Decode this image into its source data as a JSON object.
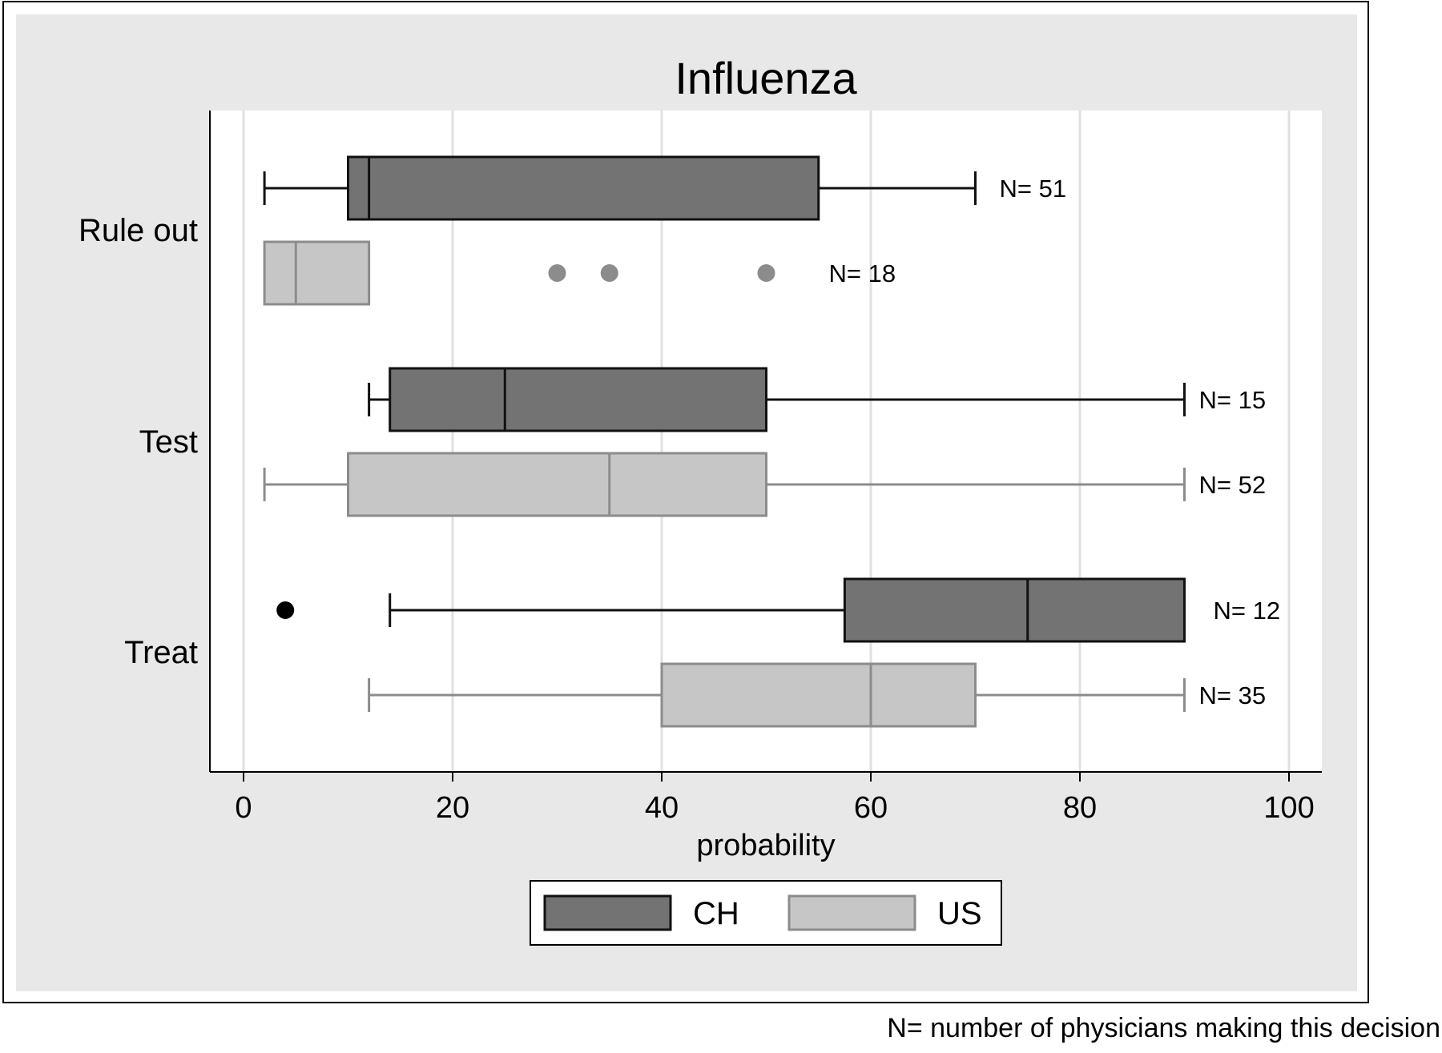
{
  "chart_data": {
    "type": "boxplot",
    "title": "Influenza",
    "xlabel": "probability",
    "ylabel": "",
    "xlim": [
      -3,
      103
    ],
    "xticks": [
      0,
      20,
      40,
      60,
      80,
      100
    ],
    "grid": true,
    "orientation": "horizontal",
    "legend_placement": "bottom",
    "categories": [
      "Rule out",
      "Test",
      "Treat"
    ],
    "series": [
      {
        "name": "CH",
        "fill": "#737373",
        "stroke": "#111111",
        "boxes": [
          {
            "category": "Rule out",
            "whisker_low": 2,
            "q1": 10,
            "median": 12,
            "q3": 55,
            "whisker_high": 70,
            "outliers": [],
            "n_label": "N= 51"
          },
          {
            "category": "Test",
            "whisker_low": 12,
            "q1": 14,
            "median": 25,
            "q3": 50,
            "whisker_high": 90,
            "outliers": [],
            "n_label": "N= 15"
          },
          {
            "category": "Treat",
            "whisker_low": 14,
            "q1": 57.5,
            "median": 75,
            "q3": 90,
            "whisker_high": 90,
            "outliers": [
              4
            ],
            "n_label": "N= 12"
          }
        ]
      },
      {
        "name": "US",
        "fill": "#c6c6c6",
        "stroke": "#8c8c8c",
        "boxes": [
          {
            "category": "Rule out",
            "whisker_low": 2,
            "q1": 2,
            "median": 5,
            "q3": 12,
            "whisker_high": 12,
            "outliers": [
              30,
              35,
              50
            ],
            "n_label": "N= 18"
          },
          {
            "category": "Test",
            "whisker_low": 2,
            "q1": 10,
            "median": 35,
            "q3": 50,
            "whisker_high": 90,
            "outliers": [],
            "n_label": "N= 52"
          },
          {
            "category": "Treat",
            "whisker_low": 12,
            "q1": 40,
            "median": 60,
            "q3": 70,
            "whisker_high": 90,
            "outliers": [],
            "n_label": "N= 35"
          }
        ]
      }
    ]
  },
  "footnote": "N= number of physicians making this decision",
  "colors": {
    "outer_background": "#e8e8e8",
    "plot_background": "#ffffff",
    "grid": "#e0e0e0"
  }
}
